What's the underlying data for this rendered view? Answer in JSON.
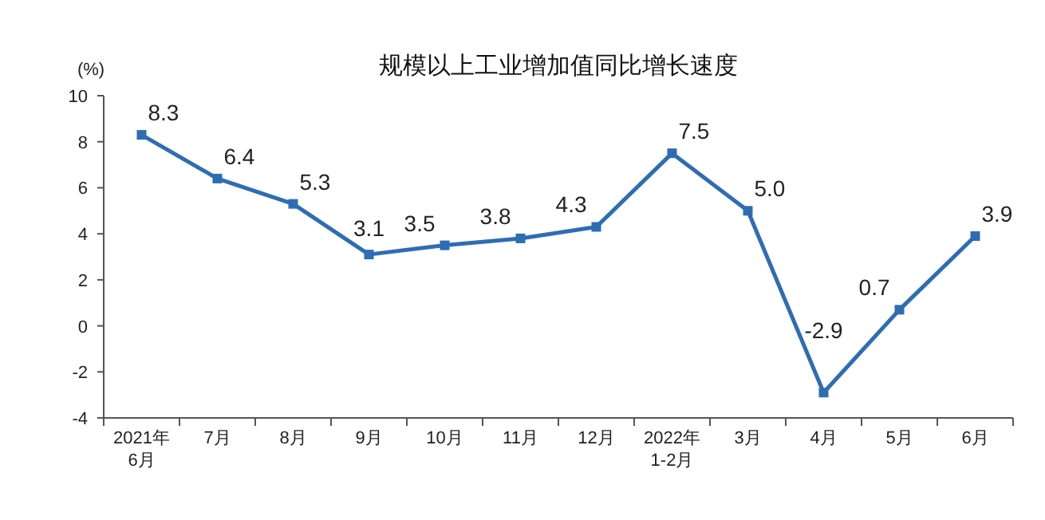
{
  "chart_data": {
    "type": "line",
    "title": "规模以上工业增加值同比增长速度",
    "ylabel": "(%)",
    "categories": [
      "2021年\n6月",
      "7月",
      "8月",
      "9月",
      "10月",
      "11月",
      "12月",
      "2022年\n1-2月",
      "3月",
      "4月",
      "5月",
      "6月"
    ],
    "series": [
      {
        "color": "#2e6db4",
        "values": [
          8.3,
          6.4,
          5.3,
          3.1,
          3.5,
          3.8,
          4.3,
          7.5,
          5.0,
          -2.9,
          0.7,
          3.9
        ],
        "value_labels": [
          "8.3",
          "6.4",
          "5.3",
          "3.1",
          "3.5",
          "3.8",
          "4.3",
          "7.5",
          "5.0",
          "-2.9",
          "0.7",
          "3.9"
        ]
      }
    ],
    "ylim": [
      -4,
      10
    ],
    "yticks": [
      -4,
      -2,
      0,
      2,
      4,
      6,
      8,
      10
    ],
    "grid": false,
    "marker": "square",
    "line_style": "solid"
  }
}
